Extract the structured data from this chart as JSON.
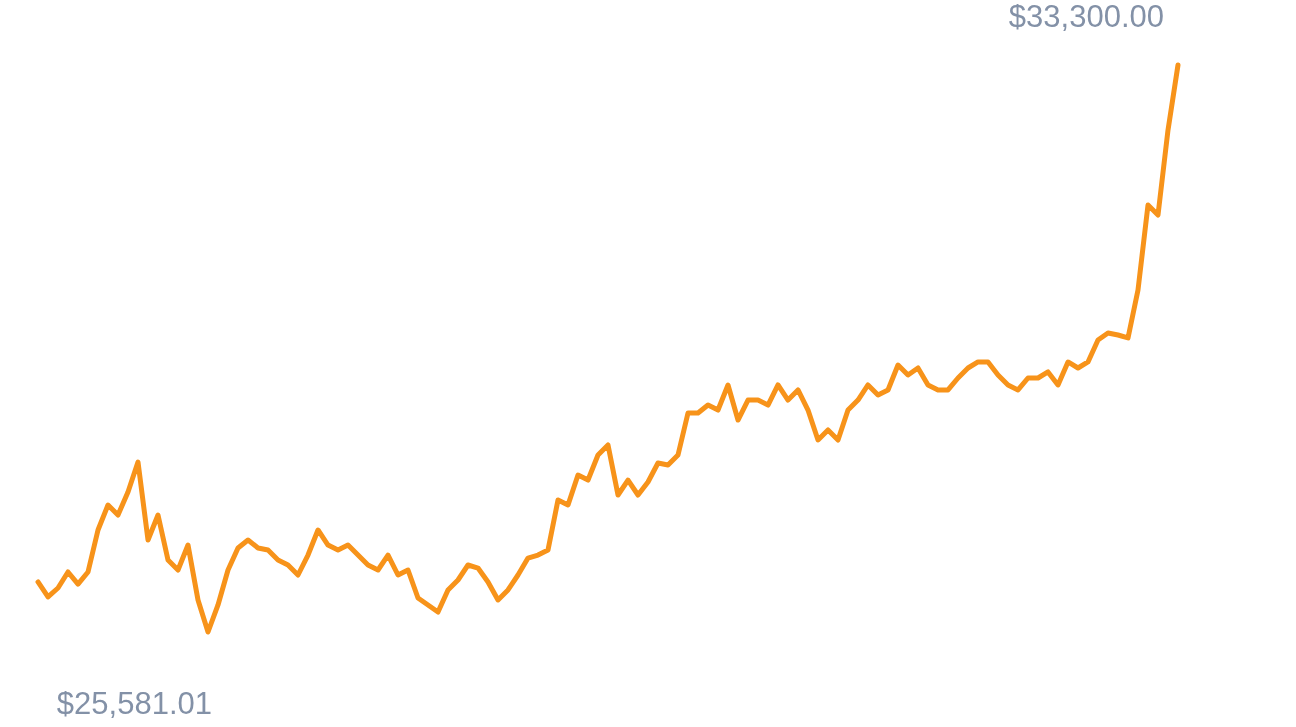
{
  "chart_data": {
    "type": "line",
    "categories": [
      null,
      null,
      null,
      null,
      null,
      null,
      null,
      null,
      null,
      null,
      null,
      null,
      null,
      null,
      null,
      null,
      null,
      null,
      null,
      null,
      null,
      null,
      null,
      null,
      null,
      null,
      null,
      null,
      null,
      null,
      null,
      null,
      null,
      null,
      null,
      null,
      null,
      null,
      null,
      null,
      null,
      null,
      null,
      null,
      null,
      null,
      null,
      null,
      null,
      null,
      null,
      null,
      null,
      null,
      null,
      null,
      null,
      null,
      null,
      null,
      null,
      null,
      null,
      null,
      null,
      null,
      null,
      null,
      null,
      null,
      null,
      null,
      null,
      null,
      null,
      null,
      null,
      null,
      null,
      null,
      null,
      null,
      null,
      null,
      null,
      null,
      null,
      null,
      null,
      null,
      null,
      null,
      null,
      null,
      null,
      null,
      null,
      null,
      null,
      null,
      null,
      null,
      null,
      null,
      null,
      null,
      null,
      null,
      null,
      null,
      null,
      null,
      null,
      null,
      null
    ],
    "series": [
      {
        "color": "#f7931a",
        "values": [
          26262,
          26058,
          26180,
          26398,
          26234,
          26398,
          26970,
          27310,
          27174,
          27487,
          27895,
          26833,
          27174,
          26561,
          26425,
          26765,
          26017,
          25581.01,
          25949,
          26425,
          26725,
          26833,
          26725,
          26697,
          26561,
          26493,
          26357,
          26629,
          26970,
          26765,
          26697,
          26765,
          26629,
          26493,
          26425,
          26629,
          26357,
          26425,
          26044,
          25949,
          25853,
          26153,
          26289,
          26493,
          26452,
          26262,
          26017,
          26153,
          26357,
          26588,
          26629,
          26697,
          27378,
          27310,
          27718,
          27650,
          27991,
          28127,
          27446,
          27650,
          27446,
          27623,
          27882,
          27855,
          27991,
          28562,
          28562,
          28671,
          28603,
          28944,
          28467,
          28739,
          28739,
          28671,
          28944,
          28739,
          28876,
          28603,
          28195,
          28331,
          28195,
          28603,
          28739,
          28944,
          28808,
          28876,
          29216,
          29080,
          29175,
          28944,
          28876,
          28876,
          29039,
          29175,
          29257,
          29257,
          29080,
          28944,
          28876,
          29039,
          29039,
          29121,
          28944,
          29257,
          29175,
          29257,
          29556,
          29652,
          29624,
          29584,
          30237,
          31394,
          31258,
          32415,
          33300
        ],
        "value_labels": [
          null,
          null,
          null,
          null,
          null,
          null,
          null,
          null,
          null,
          null,
          null,
          null,
          null,
          null,
          null,
          null,
          null,
          "$25,581.01",
          null,
          null,
          null,
          null,
          null,
          null,
          null,
          null,
          null,
          null,
          null,
          null,
          null,
          null,
          null,
          null,
          null,
          null,
          null,
          null,
          null,
          null,
          null,
          null,
          null,
          null,
          null,
          null,
          null,
          null,
          null,
          null,
          null,
          null,
          null,
          null,
          null,
          null,
          null,
          null,
          null,
          null,
          null,
          null,
          null,
          null,
          null,
          null,
          null,
          null,
          null,
          null,
          null,
          null,
          null,
          null,
          null,
          null,
          null,
          null,
          null,
          null,
          null,
          null,
          null,
          null,
          null,
          null,
          null,
          null,
          null,
          null,
          null,
          null,
          null,
          null,
          null,
          null,
          null,
          null,
          null,
          null,
          null,
          null,
          null,
          null,
          null,
          null,
          null,
          null,
          null,
          null,
          null,
          null,
          null,
          null,
          "$33,300.00"
        ]
      }
    ]
  }
}
